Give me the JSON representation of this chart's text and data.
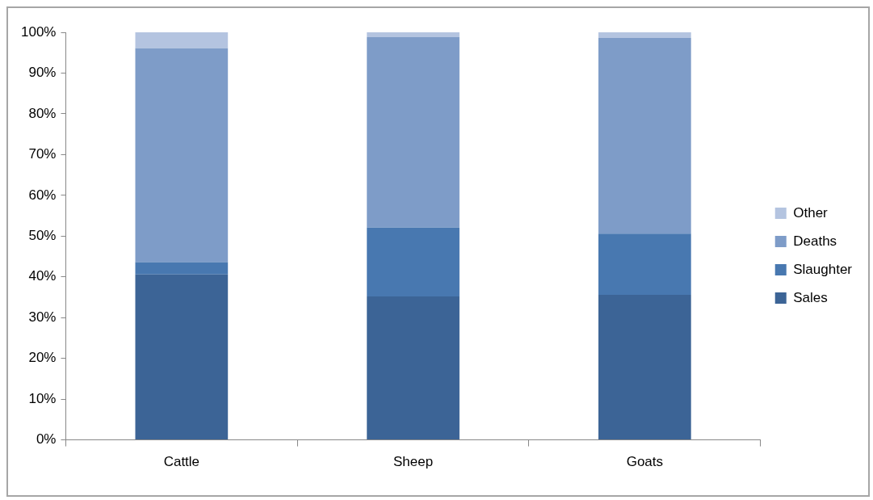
{
  "chart_data": {
    "type": "bar",
    "stacked": true,
    "categories": [
      "Cattle",
      "Sheep",
      "Goats"
    ],
    "series": [
      {
        "name": "Sales",
        "color": "#3c6496",
        "values": [
          40.6,
          35.2,
          35.6
        ]
      },
      {
        "name": "Slaughter",
        "color": "#4878b0",
        "values": [
          3.0,
          16.9,
          15.0
        ]
      },
      {
        "name": "Deaths",
        "color": "#7e9cc8",
        "values": [
          52.5,
          46.7,
          48.0
        ]
      },
      {
        "name": "Other",
        "color": "#b4c4e0",
        "values": [
          3.9,
          1.2,
          1.4
        ]
      }
    ],
    "ylim": [
      0,
      100
    ],
    "yticks": [
      {
        "value": 0,
        "label": "0%"
      },
      {
        "value": 10,
        "label": "10%"
      },
      {
        "value": 20,
        "label": "20%"
      },
      {
        "value": 30,
        "label": "30%"
      },
      {
        "value": 40,
        "label": "40%"
      },
      {
        "value": 50,
        "label": "50%"
      },
      {
        "value": 60,
        "label": "60%"
      },
      {
        "value": 70,
        "label": "70%"
      },
      {
        "value": 80,
        "label": "80%"
      },
      {
        "value": 90,
        "label": "90%"
      },
      {
        "value": 100,
        "label": "100%"
      }
    ],
    "grid": false,
    "legend": "right"
  }
}
